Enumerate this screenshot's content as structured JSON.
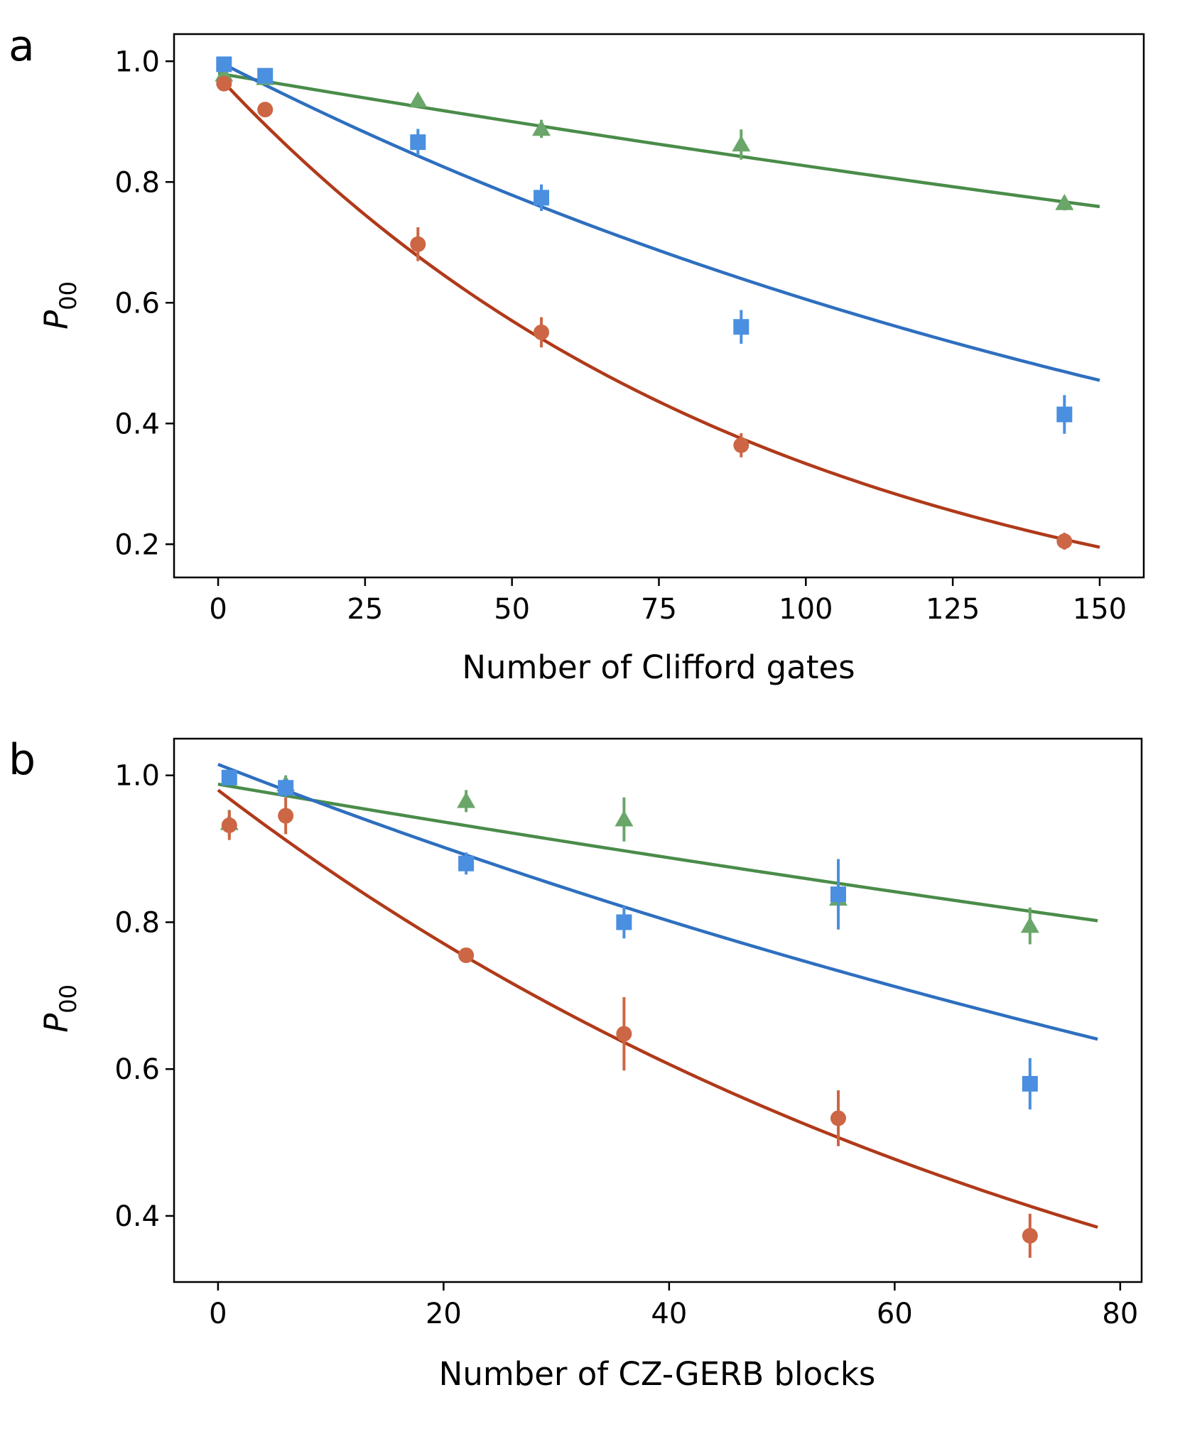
{
  "chart_data": [
    {
      "type": "scatter",
      "panel_label": "a",
      "xlabel": "Number of Clifford gates",
      "ylabel_main": "P",
      "ylabel_sub": "00",
      "xlim": [
        -7.5,
        157.5
      ],
      "ylim": [
        0.145,
        1.045
      ],
      "xticks": [
        0,
        25,
        50,
        75,
        100,
        125,
        150
      ],
      "yticks": [
        0.2,
        0.4,
        0.6,
        0.8,
        1.0
      ],
      "xtick_labels": [
        "0",
        "25",
        "50",
        "75",
        "100",
        "125",
        "150"
      ],
      "ytick_labels": [
        "0.2",
        "0.4",
        "0.6",
        "0.8",
        "1.0"
      ],
      "series": [
        {
          "name": "green-triangles",
          "marker": "triangle",
          "point_color": "#6aa66a",
          "line_color": "#4a8c4a",
          "x": [
            1,
            8,
            34,
            55,
            89,
            144
          ],
          "y": [
            0.978,
            0.972,
            0.935,
            0.888,
            0.862,
            0.765
          ],
          "err": [
            0.006,
            0.01,
            0.01,
            0.015,
            0.025,
            0.012
          ],
          "fit": {
            "A": 0.98,
            "p": 0.9983,
            "x0": 0,
            "x1": 150
          }
        },
        {
          "name": "blue-squares",
          "marker": "square",
          "point_color": "#4a8fe0",
          "line_color": "#2e6fbf",
          "x": [
            1,
            8,
            34,
            55,
            89,
            144
          ],
          "y": [
            0.995,
            0.976,
            0.866,
            0.774,
            0.56,
            0.415
          ],
          "err": [
            0.008,
            0.012,
            0.022,
            0.022,
            0.028,
            0.032
          ],
          "fit": {
            "A": 1.0,
            "p": 0.995,
            "x0": 0,
            "x1": 150
          }
        },
        {
          "name": "red-circles",
          "marker": "circle",
          "point_color": "#cc6644",
          "line_color": "#b03a1a",
          "x": [
            1,
            8,
            34,
            55,
            89,
            144
          ],
          "y": [
            0.963,
            0.92,
            0.697,
            0.551,
            0.364,
            0.205
          ],
          "err": [
            0.008,
            0.01,
            0.028,
            0.025,
            0.02,
            0.014
          ],
          "fit": {
            "A": 0.975,
            "p": 0.98933,
            "x0": 0,
            "x1": 150
          }
        }
      ]
    },
    {
      "type": "scatter",
      "panel_label": "b",
      "xlabel": "Number of CZ-GERB blocks",
      "ylabel_main": "P",
      "ylabel_sub": "00",
      "xlim": [
        -3.9,
        81.9
      ],
      "ylim": [
        0.31,
        1.05
      ],
      "xticks": [
        0,
        20,
        40,
        60,
        80
      ],
      "yticks": [
        0.4,
        0.6,
        0.8,
        1.0
      ],
      "xtick_labels": [
        "0",
        "20",
        "40",
        "60",
        "80"
      ],
      "ytick_labels": [
        "0.4",
        "0.6",
        "0.8",
        "1.0"
      ],
      "series": [
        {
          "name": "green-triangles",
          "marker": "triangle",
          "point_color": "#6aa66a",
          "line_color": "#4a8c4a",
          "x": [
            1,
            6,
            22,
            36,
            55,
            72
          ],
          "y": [
            0.935,
            0.988,
            0.965,
            0.94,
            0.832,
            0.795
          ],
          "err": [
            0.018,
            0.012,
            0.015,
            0.03,
            0.03,
            0.025
          ],
          "fit": {
            "A": 0.988,
            "p": 0.99733,
            "x0": 0,
            "x1": 78
          }
        },
        {
          "name": "blue-squares",
          "marker": "square",
          "point_color": "#4a8fe0",
          "line_color": "#2e6fbf",
          "x": [
            1,
            6,
            22,
            36,
            55,
            72
          ],
          "y": [
            0.997,
            0.983,
            0.88,
            0.8,
            0.838,
            0.58
          ],
          "err": [
            0.01,
            0.012,
            0.015,
            0.022,
            0.048,
            0.035
          ],
          "fit": {
            "A": 1.015,
            "p": 0.99412,
            "x0": 0,
            "x1": 78
          }
        },
        {
          "name": "red-circles",
          "marker": "circle",
          "point_color": "#cc6644",
          "line_color": "#b03a1a",
          "x": [
            1,
            6,
            22,
            36,
            55,
            72
          ],
          "y": [
            0.932,
            0.945,
            0.755,
            0.648,
            0.533,
            0.373
          ],
          "err": [
            0.02,
            0.025,
            0.01,
            0.05,
            0.038,
            0.03
          ],
          "fit": {
            "A": 0.98,
            "p": 0.98808,
            "x0": 0,
            "x1": 78
          }
        }
      ]
    }
  ]
}
